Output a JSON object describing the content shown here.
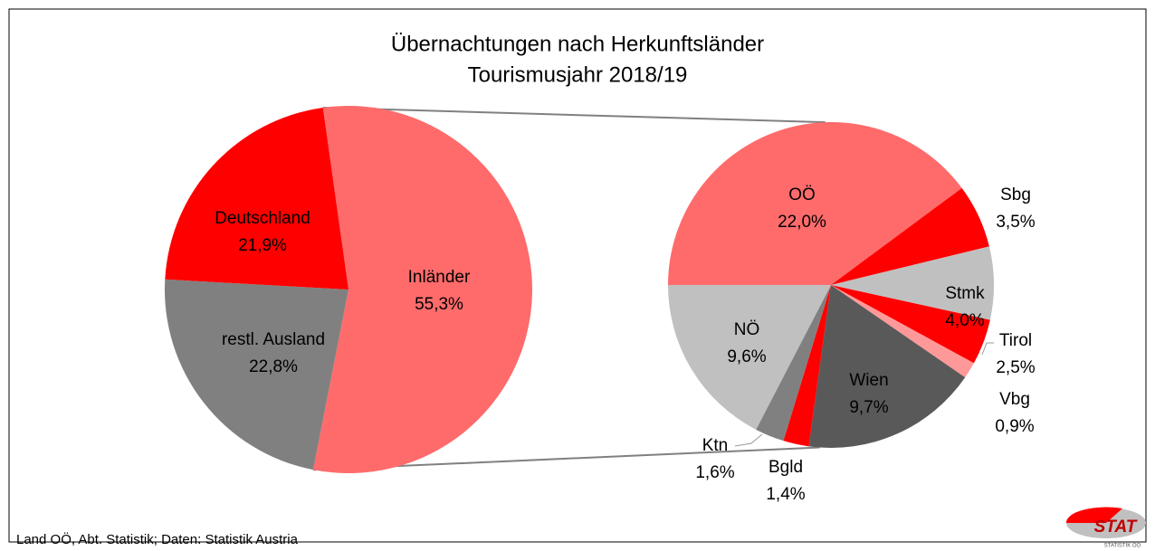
{
  "chart_data": [
    {
      "type": "pie",
      "title": "Übernachtungen nach Herkunftsländer",
      "subtitle": "Tourismusjahr 2018/19",
      "categories": [
        "Inländer",
        "restl. Ausland",
        "Deutschland"
      ],
      "values": [
        55.3,
        22.8,
        21.9
      ],
      "value_labels": [
        "55,3%",
        "22,8%",
        "21,9%"
      ],
      "colors": [
        "#ff6b6b",
        "#808080",
        "#ff0000"
      ]
    },
    {
      "type": "pie",
      "categories": [
        "OÖ",
        "Sbg",
        "Stmk",
        "Tirol",
        "Vbg",
        "Wien",
        "Bgld",
        "Ktn",
        "NÖ"
      ],
      "values": [
        22.0,
        3.5,
        4.0,
        2.5,
        0.9,
        9.7,
        1.4,
        1.6,
        9.6
      ],
      "value_labels": [
        "22,0%",
        "3,5%",
        "4,0%",
        "2,5%",
        "0,9%",
        "9,7%",
        "1,4%",
        "1,6%",
        "9,6%"
      ],
      "colors": [
        "#ff6b6b",
        "#ff0000",
        "#c0c0c0",
        "#ff0000",
        "#ff9999",
        "#595959",
        "#ff0000",
        "#808080",
        "#c0c0c0"
      ]
    }
  ],
  "source": "Land OÖ, Abt. Statistik; Daten: Statistik Austria",
  "logo": {
    "name": "STAT",
    "subtitle": "STATISTIK OÖ"
  }
}
